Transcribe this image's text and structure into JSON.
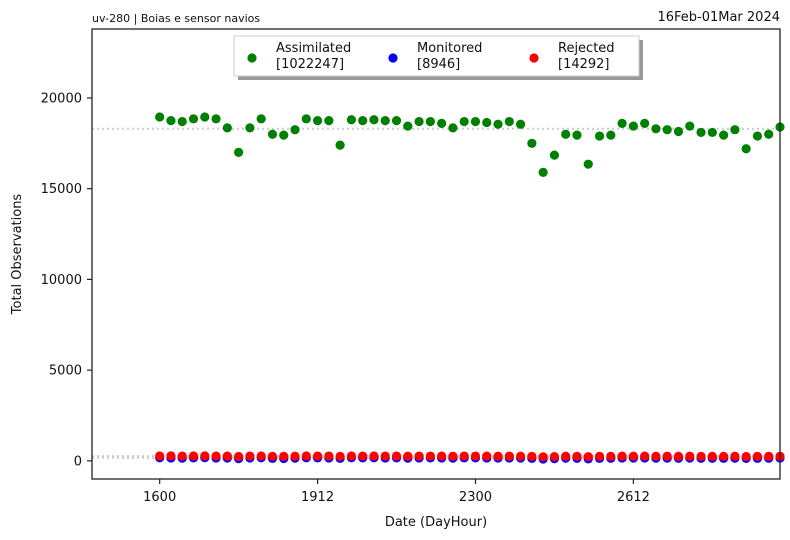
{
  "chart_data": {
    "type": "scatter",
    "title_left": "uv-280  |  Boias e sensor navios",
    "title_right": "16Feb-01Mar 2024",
    "xlabel": "Date (DayHour)",
    "ylabel": "Total Observations",
    "xlim": [
      -6,
      55
    ],
    "ylim": [
      -1000,
      23800
    ],
    "yticks": [
      0,
      5000,
      10000,
      15000,
      20000
    ],
    "xticks": [
      {
        "index": 0,
        "label": "1600"
      },
      {
        "index": 14,
        "label": "1912"
      },
      {
        "index": 28,
        "label": "2300"
      },
      {
        "index": 42,
        "label": "2612"
      }
    ],
    "means": {
      "assimilated": 18300,
      "monitored": 165,
      "rejected": 260
    },
    "legend_position": "upper center",
    "colors": {
      "assimilated": "#008000",
      "monitored": "#0000ff",
      "rejected": "#ff0000",
      "mean_line": "#cccccc"
    },
    "series": [
      {
        "name": "Assimilated",
        "key": "assimilated",
        "count_label": "[1022247]",
        "values": [
          18950,
          18750,
          18700,
          18850,
          18950,
          18850,
          18350,
          17000,
          18350,
          18850,
          18000,
          17950,
          18250,
          18850,
          18750,
          18750,
          17400,
          18800,
          18750,
          18800,
          18750,
          18750,
          18450,
          18700,
          18700,
          18600,
          18350,
          18700,
          18700,
          18650,
          18550,
          18700,
          18550,
          17500,
          15900,
          16850,
          18000,
          17950,
          16350,
          17900,
          17950,
          18600,
          18450,
          18600,
          18300,
          18250,
          18150,
          18450,
          18100,
          18100,
          17950,
          18250,
          17200,
          17900,
          18000,
          18400
        ]
      },
      {
        "name": "Monitored",
        "key": "monitored",
        "count_label": "[8946]",
        "values": [
          170,
          160,
          150,
          165,
          175,
          160,
          155,
          120,
          160,
          170,
          140,
          130,
          150,
          170,
          165,
          160,
          140,
          170,
          165,
          170,
          160,
          165,
          150,
          160,
          165,
          160,
          150,
          165,
          165,
          160,
          155,
          160,
          155,
          140,
          100,
          120,
          150,
          145,
          110,
          140,
          145,
          160,
          155,
          160,
          150,
          150,
          145,
          155,
          145,
          145,
          140,
          150,
          135,
          140,
          145,
          155
        ]
      },
      {
        "name": "Rejected",
        "key": "rejected",
        "count_label": "[14292]",
        "values": [
          270,
          275,
          265,
          270,
          275,
          265,
          260,
          240,
          265,
          270,
          250,
          245,
          255,
          270,
          265,
          265,
          250,
          270,
          265,
          270,
          265,
          265,
          255,
          265,
          265,
          260,
          255,
          265,
          265,
          260,
          255,
          260,
          255,
          245,
          220,
          235,
          255,
          250,
          230,
          250,
          250,
          260,
          255,
          260,
          255,
          255,
          250,
          255,
          250,
          250,
          245,
          255,
          240,
          245,
          250,
          255
        ]
      }
    ]
  }
}
